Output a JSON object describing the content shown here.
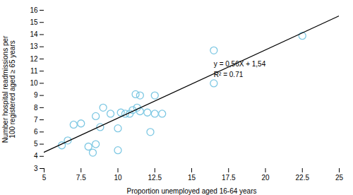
{
  "chart_data": {
    "type": "scatter",
    "xlabel": "Proportion unemployed aged 16-64 years",
    "ylabel": "Number hospital readmissions per\n100 registered aged ≥ 65 years",
    "series": [
      {
        "type": "scatter",
        "color": "#7EC8E3",
        "marker": "circle",
        "x": [
          6.2,
          6.6,
          7.0,
          7.5,
          8.0,
          8.3,
          8.5,
          8.5,
          8.8,
          9.0,
          9.5,
          10.0,
          10.0,
          10.2,
          10.5,
          10.8,
          11.0,
          11.2,
          11.3,
          11.5,
          11.5,
          12.0,
          12.2,
          12.5,
          12.5,
          13.0,
          16.5,
          16.5,
          22.5
        ],
        "values": [
          4.9,
          5.3,
          6.6,
          6.7,
          4.8,
          4.3,
          7.3,
          5.0,
          6.4,
          8.0,
          7.5,
          4.5,
          6.3,
          7.6,
          7.5,
          7.5,
          7.8,
          9.1,
          8.0,
          7.7,
          9.0,
          7.6,
          6.0,
          9.0,
          7.5,
          7.5,
          12.7,
          10.0,
          13.9
        ]
      },
      {
        "type": "line",
        "color": "black",
        "x": [
          5,
          25
        ],
        "values": [
          4.34,
          15.54
        ]
      }
    ],
    "annotations": [
      {
        "text": "y = 0,56X + 1,54",
        "x": 16.5,
        "y": 11.8
      },
      {
        "text": "R² = 0.71",
        "x": 16.5,
        "y": 10.9
      }
    ],
    "xlim": [
      5,
      25
    ],
    "ylim": [
      3,
      16
    ],
    "xticks": [
      5,
      7.5,
      10,
      12.5,
      15,
      17.5,
      20,
      22.5,
      25
    ],
    "yticks": [
      3,
      4,
      5,
      6,
      7,
      8,
      9,
      10,
      11,
      12,
      13,
      14,
      15,
      16
    ],
    "grid": false
  }
}
